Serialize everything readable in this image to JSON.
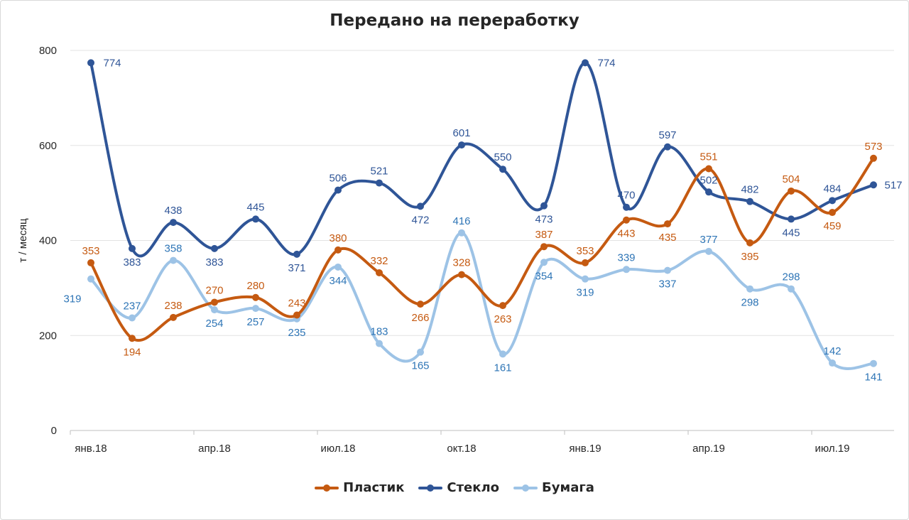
{
  "chart_data": {
    "type": "line",
    "title": "Передано на переработку",
    "xlabel": "",
    "ylabel": "т / месяц",
    "ylim": [
      0,
      800
    ],
    "yticks": [
      "0",
      "200",
      "400",
      "600",
      "800"
    ],
    "categories": [
      "янв.18",
      "фев.18",
      "мар.18",
      "апр.18",
      "май.18",
      "июн.18",
      "июл.18",
      "авг.18",
      "сен.18",
      "окт.18",
      "ноя.18",
      "дек.18",
      "янв.19",
      "фев.19",
      "мар.19",
      "апр.19",
      "май.19",
      "июн.19",
      "июл.19",
      "авг.19"
    ],
    "xtick_labels": [
      "янв.18",
      "апр.18",
      "июл.18",
      "окт.18",
      "янв.19",
      "апр.19",
      "июл.19"
    ],
    "series": [
      {
        "name": "Пластик",
        "color": "#c55a11",
        "label_color": "#c55a11",
        "values": [
          353,
          194,
          238,
          270,
          280,
          243,
          380,
          332,
          266,
          328,
          263,
          387,
          353,
          443,
          435,
          551,
          395,
          504,
          459,
          573
        ]
      },
      {
        "name": "Стекло",
        "color": "#2f5597",
        "label_color": "#2f5597",
        "values": [
          774,
          383,
          438,
          383,
          445,
          371,
          506,
          521,
          472,
          601,
          550,
          473,
          774,
          470,
          597,
          502,
          482,
          445,
          484,
          517
        ]
      },
      {
        "name": "Бумага",
        "color": "#9dc3e6",
        "label_color": "#2e75b6",
        "values": [
          319,
          237,
          358,
          254,
          257,
          235,
          344,
          183,
          165,
          416,
          161,
          354,
          319,
          339,
          337,
          377,
          298,
          298,
          142,
          141
        ]
      }
    ],
    "legend": "bottom",
    "grid": true
  }
}
